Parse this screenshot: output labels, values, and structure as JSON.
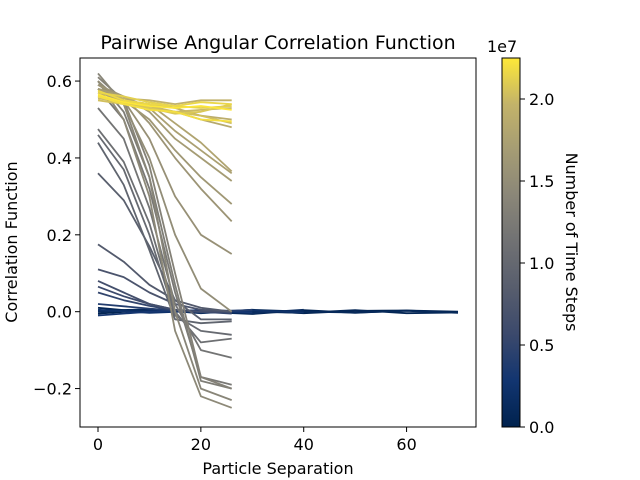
{
  "chart_data": {
    "type": "line",
    "title": "Pairwise Angular Correlation Function",
    "xlabel": "Particle Separation",
    "ylabel": "Correlation Function",
    "xlim": [
      -3.5,
      73.5
    ],
    "ylim": [
      -0.3,
      0.66
    ],
    "xticks": [
      0,
      20,
      40,
      60
    ],
    "yticks": [
      -0.2,
      0.0,
      0.2,
      0.4,
      0.6
    ],
    "ytick_labels": [
      "−0.2",
      "0.0",
      "0.2",
      "0.4",
      "0.6"
    ],
    "grid": false,
    "legend": "none",
    "colorbar": {
      "label": "Number of Time Steps",
      "range": [
        0,
        22500000
      ],
      "ticks": [
        0,
        5000000,
        10000000,
        15000000,
        20000000
      ],
      "tick_labels": [
        "0.0",
        "0.5",
        "1.0",
        "1.5",
        "2.0"
      ],
      "offset_label": "1e7",
      "colormap": "cividis"
    },
    "series": [
      {
        "t": 0,
        "x": [
          0,
          10,
          20,
          30,
          40,
          50,
          60,
          70
        ],
        "y": [
          0.0,
          0.005,
          -0.003,
          0.003,
          -0.004,
          0.002,
          0.003,
          -0.002
        ]
      },
      {
        "t": 300000,
        "x": [
          0,
          10,
          20,
          30,
          40,
          50,
          60,
          70
        ],
        "y": [
          -0.005,
          0.004,
          0.0,
          -0.006,
          0.004,
          -0.003,
          0.003,
          0.0
        ]
      },
      {
        "t": 600000,
        "x": [
          0,
          10,
          20,
          30,
          40,
          50,
          60,
          70
        ],
        "y": [
          0.01,
          -0.002,
          0.004,
          0.0,
          -0.003,
          0.004,
          -0.004,
          -0.002
        ]
      },
      {
        "t": 1000000,
        "x": [
          0,
          10,
          20,
          30,
          40,
          50,
          60,
          70
        ],
        "y": [
          0.003,
          0.006,
          -0.004,
          0.005,
          0.0,
          -0.002,
          0.002,
          -0.003
        ]
      },
      {
        "t": 1500000,
        "x": [
          0,
          10,
          20,
          30,
          40
        ],
        "y": [
          0.0,
          0.004,
          0.0,
          -0.004,
          0.005
        ]
      },
      {
        "t": 2200000,
        "x": [
          0,
          10,
          20,
          30,
          40
        ],
        "y": [
          0.005,
          -0.003,
          0.002,
          0.003,
          -0.002
        ]
      },
      {
        "t": 3000000,
        "x": [
          0,
          10,
          20,
          30
        ],
        "y": [
          -0.01,
          0.0,
          0.004,
          -0.002
        ]
      },
      {
        "t": 4000000,
        "x": [
          0,
          10,
          20,
          30
        ],
        "y": [
          0.02,
          0.008,
          -0.002,
          0.005
        ]
      },
      {
        "t": 5000000,
        "x": [
          0,
          5,
          10,
          15,
          20,
          26
        ],
        "y": [
          0.05,
          0.03,
          0.015,
          0.003,
          0.0,
          -0.005
        ]
      },
      {
        "t": 5800000,
        "x": [
          0,
          5,
          10,
          15,
          20,
          26
        ],
        "y": [
          0.065,
          0.04,
          0.02,
          0.005,
          0.0,
          -0.002
        ]
      },
      {
        "t": 6500000,
        "x": [
          0,
          5,
          10,
          15,
          20,
          26
        ],
        "y": [
          0.08,
          0.05,
          0.02,
          0.005,
          0.0,
          0.002
        ]
      },
      {
        "t": 7200000,
        "x": [
          0,
          5,
          10,
          15,
          20,
          26
        ],
        "y": [
          0.11,
          0.09,
          0.05,
          0.02,
          0.005,
          0.0
        ]
      },
      {
        "t": 8000000,
        "x": [
          0,
          5,
          10,
          15,
          20,
          26
        ],
        "y": [
          0.175,
          0.13,
          0.07,
          0.03,
          0.01,
          0.0
        ]
      },
      {
        "t": 8800000,
        "x": [
          0,
          5,
          10,
          15,
          20,
          26
        ],
        "y": [
          0.36,
          0.29,
          0.17,
          0.03,
          -0.02,
          -0.02
        ]
      },
      {
        "t": 9500000,
        "x": [
          0,
          5,
          10,
          15,
          20,
          26
        ],
        "y": [
          0.44,
          0.33,
          0.16,
          -0.02,
          -0.03,
          -0.025
        ]
      },
      {
        "t": 10200000,
        "x": [
          0,
          5,
          10,
          15,
          20,
          26
        ],
        "y": [
          0.46,
          0.37,
          0.2,
          -0.01,
          -0.05,
          -0.06
        ]
      },
      {
        "t": 10900000,
        "x": [
          0,
          5,
          10,
          15,
          20,
          26
        ],
        "y": [
          0.475,
          0.39,
          0.23,
          0.0,
          -0.08,
          -0.07
        ]
      },
      {
        "t": 11600000,
        "x": [
          0,
          5,
          10,
          15,
          20,
          26
        ],
        "y": [
          0.53,
          0.45,
          0.27,
          0.02,
          -0.1,
          -0.12
        ]
      },
      {
        "t": 12200000,
        "x": [
          0,
          5,
          10,
          15,
          20,
          26
        ],
        "y": [
          0.58,
          0.5,
          0.32,
          0.05,
          -0.17,
          -0.19
        ]
      },
      {
        "t": 12800000,
        "x": [
          0,
          5,
          10,
          15,
          20,
          26
        ],
        "y": [
          0.6,
          0.52,
          0.35,
          0.07,
          -0.18,
          -0.2
        ]
      },
      {
        "t": 13400000,
        "x": [
          0,
          5,
          10,
          15,
          20,
          26
        ],
        "y": [
          0.61,
          0.55,
          0.38,
          0.1,
          -0.17,
          -0.2
        ]
      },
      {
        "t": 13900000,
        "x": [
          0,
          5,
          10,
          15,
          20,
          26
        ],
        "y": [
          0.62,
          0.54,
          0.35,
          0.0,
          -0.2,
          -0.23
        ]
      },
      {
        "t": 14400000,
        "x": [
          0,
          5,
          10,
          15,
          20,
          26
        ],
        "y": [
          0.6,
          0.5,
          0.3,
          -0.05,
          -0.22,
          -0.25
        ]
      },
      {
        "t": 14900000,
        "x": [
          0,
          5,
          10,
          15,
          20,
          26
        ],
        "y": [
          0.6,
          0.54,
          0.4,
          0.2,
          0.06,
          0.0
        ]
      },
      {
        "t": 15400000,
        "x": [
          0,
          5,
          10,
          15,
          20,
          26
        ],
        "y": [
          0.59,
          0.55,
          0.45,
          0.3,
          0.2,
          0.15
        ]
      },
      {
        "t": 15900000,
        "x": [
          0,
          5,
          10,
          15,
          20,
          26
        ],
        "y": [
          0.59,
          0.56,
          0.49,
          0.4,
          0.32,
          0.235
        ]
      },
      {
        "t": 16400000,
        "x": [
          0,
          5,
          10,
          15,
          20,
          26
        ],
        "y": [
          0.58,
          0.55,
          0.5,
          0.42,
          0.35,
          0.28
        ]
      },
      {
        "t": 16900000,
        "x": [
          0,
          5,
          10,
          15,
          20,
          26
        ],
        "y": [
          0.58,
          0.56,
          0.52,
          0.45,
          0.4,
          0.34
        ]
      },
      {
        "t": 17400000,
        "x": [
          0,
          5,
          10,
          15,
          20,
          26
        ],
        "y": [
          0.57,
          0.56,
          0.53,
          0.47,
          0.42,
          0.36
        ]
      },
      {
        "t": 17900000,
        "x": [
          0,
          5,
          10,
          15,
          20,
          26
        ],
        "y": [
          0.57,
          0.55,
          0.54,
          0.49,
          0.44,
          0.365
        ]
      },
      {
        "t": 18500000,
        "x": [
          0,
          5,
          10,
          15,
          20,
          26
        ],
        "y": [
          0.56,
          0.55,
          0.53,
          0.52,
          0.5,
          0.48
        ]
      },
      {
        "t": 19000000,
        "x": [
          0,
          5,
          10,
          15,
          20,
          26
        ],
        "y": [
          0.56,
          0.55,
          0.54,
          0.53,
          0.51,
          0.5
        ]
      },
      {
        "t": 19500000,
        "x": [
          0,
          5,
          10,
          15,
          20,
          26
        ],
        "y": [
          0.57,
          0.555,
          0.55,
          0.54,
          0.55,
          0.55
        ]
      },
      {
        "t": 20000000,
        "x": [
          0,
          5,
          10,
          15,
          20,
          26
        ],
        "y": [
          0.555,
          0.545,
          0.535,
          0.52,
          0.525,
          0.53
        ]
      },
      {
        "t": 20400000,
        "x": [
          0,
          5,
          10,
          15,
          20,
          26
        ],
        "y": [
          0.55,
          0.54,
          0.53,
          0.52,
          0.51,
          0.49
        ]
      },
      {
        "t": 20800000,
        "x": [
          0,
          5,
          10,
          15,
          20,
          26
        ],
        "y": [
          0.56,
          0.545,
          0.53,
          0.515,
          0.52,
          0.54
        ]
      },
      {
        "t": 21200000,
        "x": [
          0,
          5,
          10,
          15,
          20,
          26
        ],
        "y": [
          0.57,
          0.56,
          0.545,
          0.535,
          0.53,
          0.535
        ]
      },
      {
        "t": 21600000,
        "x": [
          0,
          5,
          10,
          15,
          20,
          26
        ],
        "y": [
          0.575,
          0.55,
          0.54,
          0.535,
          0.545,
          0.54
        ]
      },
      {
        "t": 22000000,
        "x": [
          0,
          5,
          10,
          15,
          20,
          26
        ],
        "y": [
          0.56,
          0.54,
          0.525,
          0.52,
          0.5,
          0.495
        ]
      },
      {
        "t": 22400000,
        "x": [
          0,
          5,
          10,
          15,
          20,
          26
        ],
        "y": [
          0.565,
          0.545,
          0.535,
          0.53,
          0.535,
          0.525
        ]
      }
    ]
  }
}
